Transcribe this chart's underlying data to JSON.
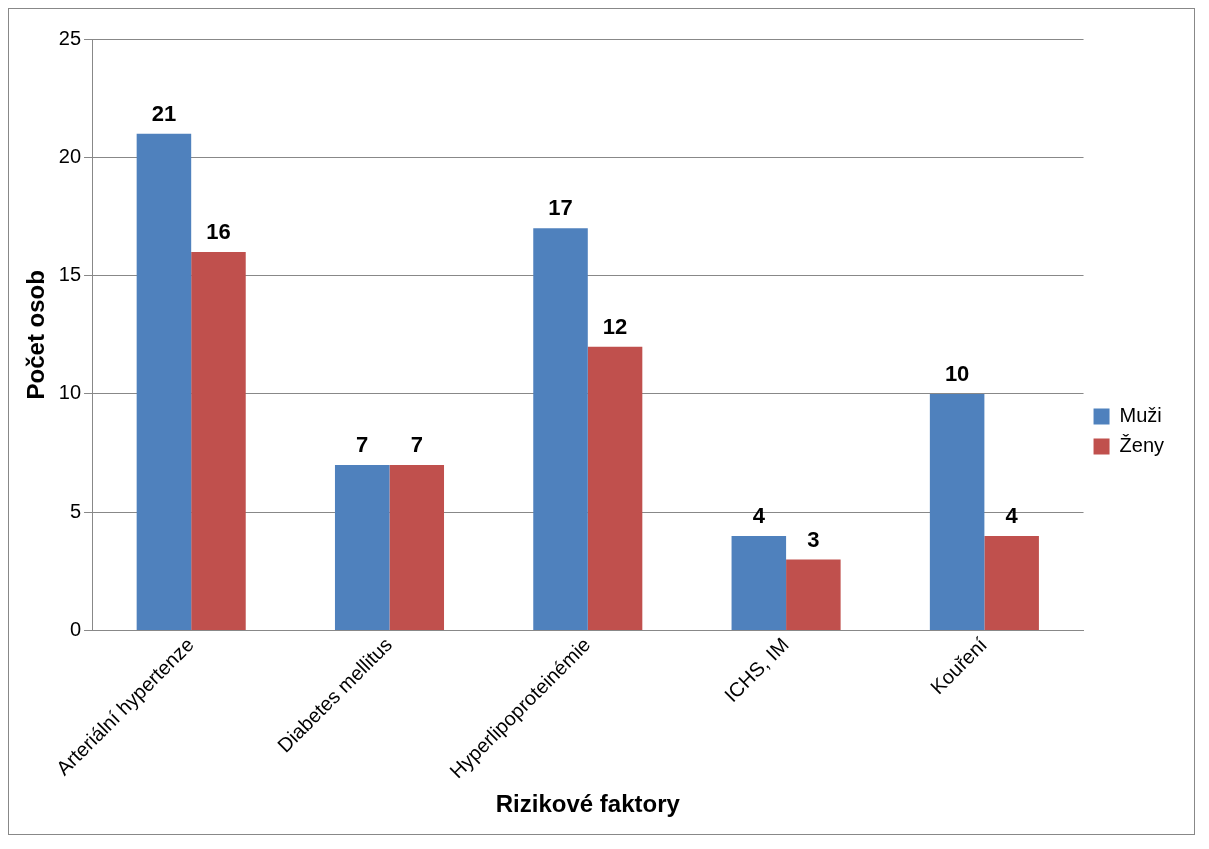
{
  "chart_data": {
    "type": "bar",
    "xlabel": "Rizikové faktory",
    "ylabel": "Počet osob",
    "categories": [
      "Arteriální hypertenze",
      "Diabetes mellitus",
      "Hyperlipoproteinémie",
      "ICHS, IM",
      "Kouření"
    ],
    "series": [
      {
        "name": "Muži",
        "color": "#4f81bd",
        "values": [
          21,
          7,
          17,
          4,
          10
        ]
      },
      {
        "name": "Ženy",
        "color": "#c0504d",
        "values": [
          16,
          7,
          12,
          3,
          4
        ]
      }
    ],
    "ylim": [
      0,
      25
    ],
    "yticks": [
      0,
      5,
      10,
      15,
      20,
      25
    ],
    "grid": "y",
    "legend": "right",
    "data_labels": true
  }
}
